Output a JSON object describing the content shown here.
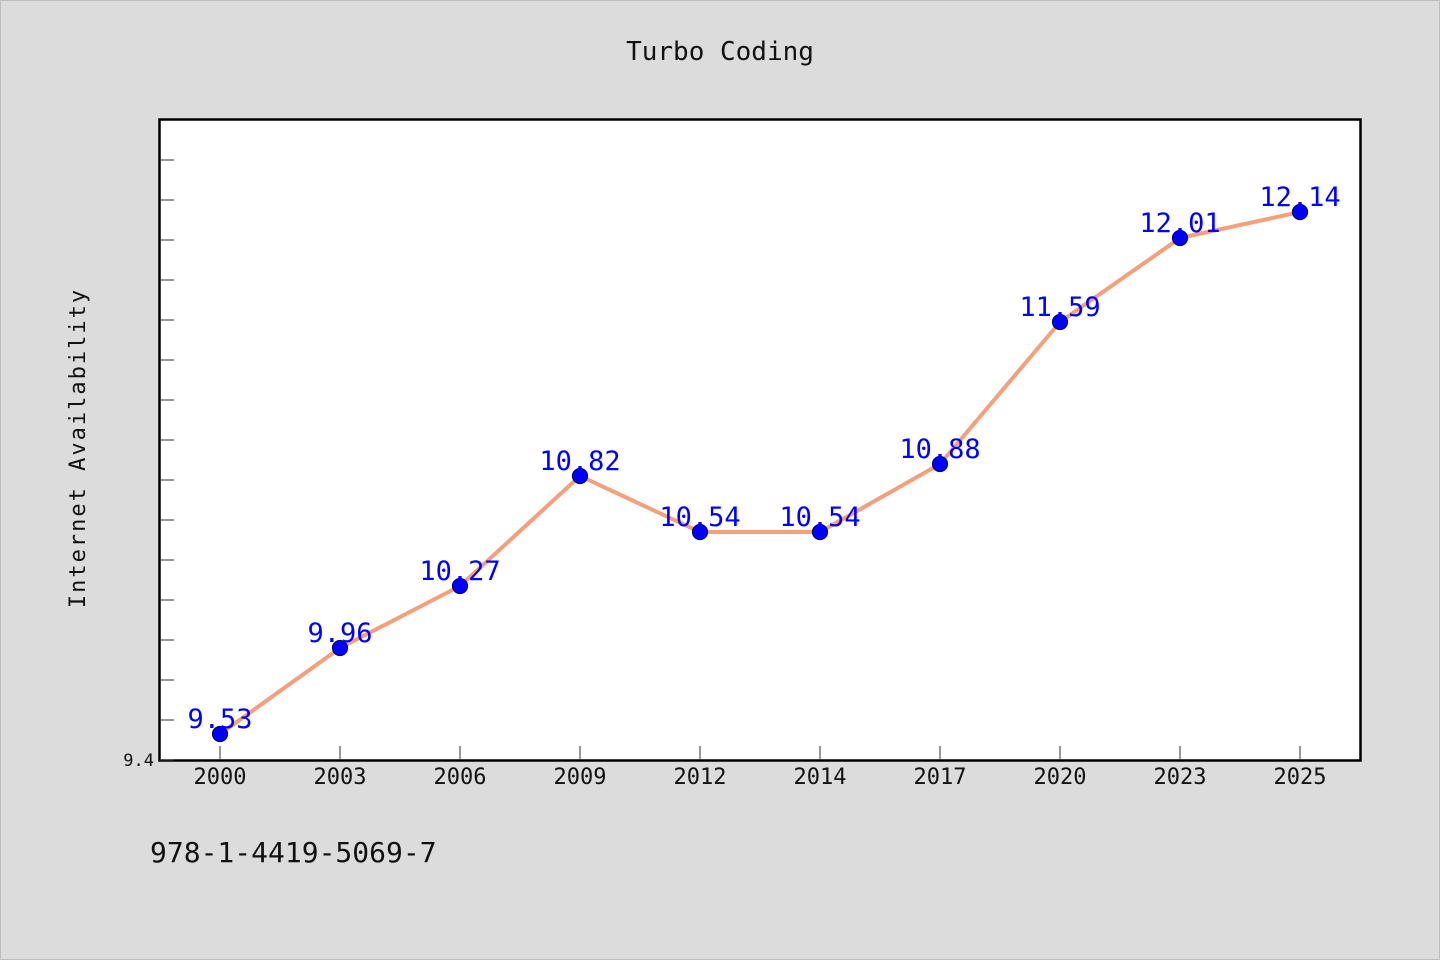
{
  "chart_data": {
    "type": "line",
    "title": "Turbo Coding",
    "xlabel": "",
    "ylabel": "Internet Availability",
    "categories": [
      "2000",
      "2003",
      "2006",
      "2009",
      "2012",
      "2014",
      "2017",
      "2020",
      "2023",
      "2025"
    ],
    "series": [
      {
        "values": [
          9.53,
          9.96,
          10.27,
          10.82,
          10.54,
          10.54,
          10.88,
          11.59,
          12.01,
          12.14
        ]
      }
    ],
    "ylim": [
      9.4,
      12.6
    ],
    "y_tick_labels": [
      "9.4"
    ],
    "grid": false,
    "legend": "none",
    "line_color": "#f4a07c",
    "marker_color": "#0000ff",
    "label_color": "#0000ff"
  },
  "footer": {
    "isbn": "978-1-4419-5069-7"
  }
}
